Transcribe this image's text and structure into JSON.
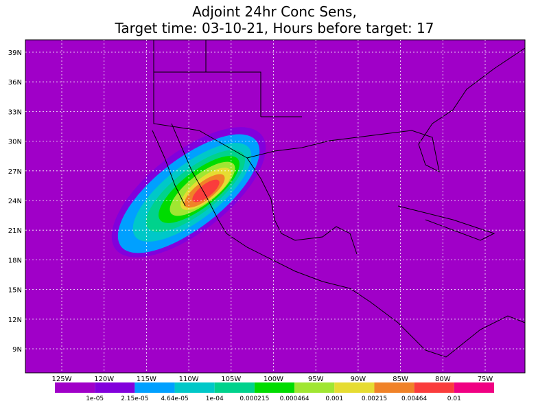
{
  "title": [
    "Adjoint 24hr Conc Sens,",
    "Target time: 03-10-21, Hours before target: 17"
  ],
  "lat_labels": [
    "39N",
    "36N",
    "33N",
    "30N",
    "27N",
    "24N",
    "21N",
    "18N",
    "15N",
    "12N",
    "9N"
  ],
  "lon_labels": [
    "125W",
    "120W",
    "115W",
    "110W",
    "105W",
    "100W",
    "95W",
    "90W",
    "85W",
    "80W",
    "75W"
  ],
  "legend": {
    "colors": [
      "#a000c8",
      "#8200dc",
      "#00a0ff",
      "#00c8c8",
      "#00d28c",
      "#00dc00",
      "#a0e632",
      "#e6dc32",
      "#f08228",
      "#fa3c3c",
      "#f00082"
    ],
    "labels": [
      "1e-05",
      "2.15e-05",
      "4.64e-05",
      "1e-04",
      "0.000215",
      "0.000464",
      "0.001",
      "0.00215",
      "0.00464",
      "0.01"
    ]
  }
}
